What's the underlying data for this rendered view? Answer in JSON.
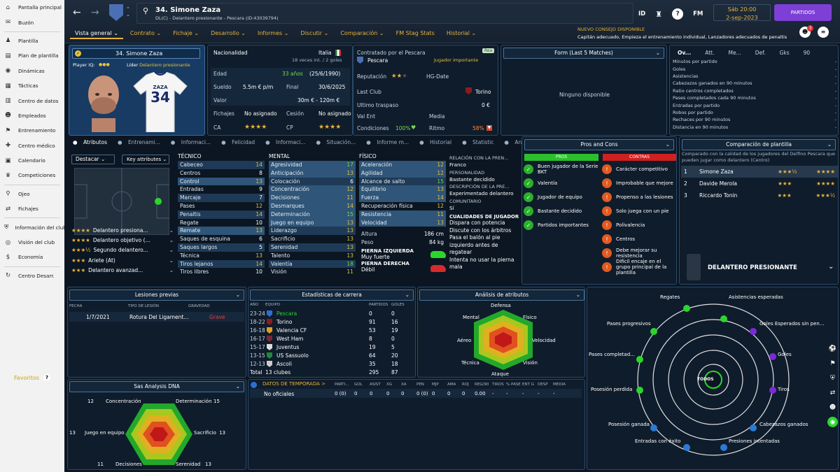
{
  "sidebar": {
    "items": [
      {
        "label": "Pantalla principal",
        "icon": "home-icon",
        "glyph": "⌂"
      },
      {
        "label": "Buzón",
        "icon": "mail-icon",
        "glyph": "✉"
      },
      {
        "label": "Plantilla",
        "icon": "squad-icon",
        "glyph": "♟"
      },
      {
        "label": "Plan de plantilla",
        "icon": "plan-icon",
        "glyph": "▤"
      },
      {
        "label": "Dinámicas",
        "icon": "dynamics-icon",
        "glyph": "◉"
      },
      {
        "label": "Tácticas",
        "icon": "tactics-icon",
        "glyph": "▦"
      },
      {
        "label": "Centro de datos",
        "icon": "data-icon",
        "glyph": "▥"
      },
      {
        "label": "Empleados",
        "icon": "staff-icon",
        "glyph": "☻"
      },
      {
        "label": "Entrenamiento",
        "icon": "training-icon",
        "glyph": "⚑"
      },
      {
        "label": "Centro médico",
        "icon": "medical-icon",
        "glyph": "✚"
      },
      {
        "label": "Calendario",
        "icon": "calendar-icon",
        "glyph": "▣"
      },
      {
        "label": "Competiciones",
        "icon": "trophy-icon",
        "glyph": "♛"
      },
      {
        "label": "Ojeo",
        "icon": "scout-icon",
        "glyph": "⚲"
      },
      {
        "label": "Fichajes",
        "icon": "transfers-icon",
        "glyph": "⇄"
      },
      {
        "label": "Información del club",
        "icon": "club-icon",
        "glyph": "⛨"
      },
      {
        "label": "Visión del club",
        "icon": "vision-icon",
        "glyph": "◎"
      },
      {
        "label": "Economía",
        "icon": "finance-icon",
        "glyph": "$"
      },
      {
        "label": "Centro Desarr.",
        "icon": "development-icon",
        "glyph": "↻"
      }
    ],
    "favorites": "Favoritos"
  },
  "header": {
    "player_name": "34. Simone Zaza",
    "player_sub": "DL(C) - Delantero presionante - Pescara (ID:43039794)",
    "date_line1": "Sáb 20:00",
    "date_line2": "2-sep-2023",
    "continue_label": "PARTIDOS",
    "news_title": "NUEVO CONSEJO DISPONIBLE",
    "news_text": "Capitán adecuado, Empieza el entrenamiento individual, Lanzadores adecuados de penaltis",
    "icons": [
      "ID",
      "♜",
      "?",
      "FM"
    ],
    "badge_count": "3",
    "tabs": [
      {
        "label": "Vista general ⌄"
      },
      {
        "label": "Contrato ⌄"
      },
      {
        "label": "Fichaje ⌄"
      },
      {
        "label": "Desarrollo ⌄"
      },
      {
        "label": "Informes ⌄"
      },
      {
        "label": "Discutir ⌄"
      },
      {
        "label": "Comparación ⌄"
      },
      {
        "label": "FM Stag Stats"
      },
      {
        "label": "Historial ⌄"
      }
    ]
  },
  "profile": {
    "name": "34. Simone Zaza",
    "player_iq": "Player IQ:",
    "role_label": "Líder",
    "role": "Delantero presionante",
    "shirt_name": "ZAZA",
    "shirt_number": "34"
  },
  "info": {
    "nationality_label": "Nacionalidad",
    "nationality": "Italia",
    "caps": "18 veces int. / 2 goles",
    "rows": [
      {
        "k": "Edad",
        "v": "33 años",
        "x": "(25/6/1990)"
      },
      {
        "k": "Sueldo",
        "v": "5.5m € p/m",
        "x2k": "Final",
        "x": "30/6/2025"
      },
      {
        "k": "Valor",
        "v": "30m € - 120m €",
        "x": ""
      }
    ],
    "fichajes_label": "Fichajes",
    "fichajes": "No asignado",
    "cesion_label": "Cesión",
    "cesion": "No asignado",
    "ca": "CA",
    "cp": "CP"
  },
  "contract": {
    "label": "Contratado por el Pescara",
    "club": "Pescara",
    "status": "Jugador importante",
    "rep_label": "Reputación",
    "hg_label": "HG-Date",
    "last_club_label": "Last Club",
    "last_club": "Torino",
    "last_transfer_label": "Ultimo traspaso",
    "last_transfer": "0 €",
    "valent_label": "Val Ent",
    "media_label": "Media",
    "cond_label": "Condiciones",
    "cond": "100%",
    "ritmo_label": "Ritmo",
    "ritmo": "58%",
    "rea": "Rea"
  },
  "form": {
    "title": "Form (Last 5 Matches)",
    "empty": "Ninguno disponible"
  },
  "stats_tabs": [
    "Ov...",
    "Att.",
    "Me...",
    "Def.",
    "Gks",
    "90"
  ],
  "stats_list": [
    "Minutos por partido",
    "Goles",
    "Asistencias",
    "Cabezazos ganados en 90 minutos",
    "Ratio centros completados",
    "Pases completados cada 90 minutos",
    "Entradas por partido",
    "Robos por partido",
    "Rechaces por 90 minutos",
    "Distancia en 90 minutos"
  ],
  "subtabs": [
    "Atributos",
    "Entrenami...",
    "Informaci...",
    "Felicidad",
    "Informaci...",
    "Situación...",
    "Informe m...",
    "Historial",
    "Statistic",
    "Análisis"
  ],
  "pitch": {
    "btn1": "Destacar",
    "btn2": "Key attributes"
  },
  "roles": [
    {
      "label": "Delantero presiona...",
      "stars": "★★★★"
    },
    {
      "label": "Delantero objetivo (...",
      "stars": "★★★★"
    },
    {
      "label": "Segundo delantero...",
      "stars": "★★★½"
    },
    {
      "label": "Ariete (At)",
      "stars": "★★★"
    },
    {
      "label": "Delantero avanzad...",
      "stars": "★★★"
    }
  ],
  "technical": {
    "title": "TÉCNICO",
    "items": [
      {
        "n": "Cabeceo",
        "v": "14"
      },
      {
        "n": "Centros",
        "v": "8"
      },
      {
        "n": "Control",
        "v": "13"
      },
      {
        "n": "Entradas",
        "v": "9"
      },
      {
        "n": "Marcaje",
        "v": "7"
      },
      {
        "n": "Pases",
        "v": "12"
      },
      {
        "n": "Penaltis",
        "v": "14"
      },
      {
        "n": "Regate",
        "v": "10"
      },
      {
        "n": "Remate",
        "v": "13"
      },
      {
        "n": "Saques de esquina",
        "v": "6"
      },
      {
        "n": "Saques largos",
        "v": "5"
      },
      {
        "n": "Técnica",
        "v": "13"
      },
      {
        "n": "Tiros lejanos",
        "v": "14"
      },
      {
        "n": "Tiros libres",
        "v": "10"
      }
    ]
  },
  "mental": {
    "title": "MENTAL",
    "items": [
      {
        "n": "Agresividad",
        "v": "17"
      },
      {
        "n": "Anticipación",
        "v": "13"
      },
      {
        "n": "Colocación",
        "v": "6"
      },
      {
        "n": "Concentración",
        "v": "12"
      },
      {
        "n": "Decisiones",
        "v": "11"
      },
      {
        "n": "Desmarques",
        "v": "14"
      },
      {
        "n": "Determinación",
        "v": "15"
      },
      {
        "n": "Juego en equipo",
        "v": "13"
      },
      {
        "n": "Liderazgo",
        "v": "13"
      },
      {
        "n": "Sacrificio",
        "v": "13"
      },
      {
        "n": "Serenidad",
        "v": "13"
      },
      {
        "n": "Talento",
        "v": "13"
      },
      {
        "n": "Valentía",
        "v": "18"
      },
      {
        "n": "Visión",
        "v": "11"
      }
    ]
  },
  "physical": {
    "title": "FÍSICO",
    "items": [
      {
        "n": "Aceleración",
        "v": "12"
      },
      {
        "n": "Agilidad",
        "v": "12"
      },
      {
        "n": "Alcance de salto",
        "v": "15"
      },
      {
        "n": "Equilibrio",
        "v": "13"
      },
      {
        "n": "Fuerza",
        "v": "14"
      },
      {
        "n": "Recuperación física",
        "v": "12"
      },
      {
        "n": "Resistencia",
        "v": "11"
      },
      {
        "n": "Velocidad",
        "v": "13"
      }
    ],
    "height_label": "Altura",
    "height": "186 cm",
    "weight_label": "Peso",
    "weight": "84 kg",
    "left_foot_label": "PIERNA IZQUIERDA",
    "left_foot": "Muy fuerte",
    "right_foot_label": "PIERNA DERECHA",
    "right_foot": "Débil"
  },
  "relation": [
    "RELACIÓN CON LA PREN...",
    "Franco",
    "PERSONALIDAD",
    "Bastante decidido",
    "DESCRIPCIÓN DE LA PRE...",
    "Experimentado delantero",
    "COMUNITARIO",
    "Sí"
  ],
  "qualities": {
    "title": "CUALIDADES DE JUGADOR",
    "items": [
      "Dispara con potencia",
      "Discute con los árbitros",
      "Pasa el balón al pie izquierdo antes de regatear",
      "Intenta no usar la pierna mala"
    ]
  },
  "pros_cons": {
    "title": "Pros and Cons",
    "pros_label": "PROS",
    "cons_label": "CONTRAS",
    "pros": [
      {
        "t": "Buen jugador de la Serie BKT",
        "icon": "star-icon"
      },
      {
        "t": "Valentía",
        "icon": "shield-icon"
      },
      {
        "t": "Jugador de equipo",
        "icon": "handshake-icon"
      },
      {
        "t": "Bastante decidido",
        "icon": "fist-icon"
      },
      {
        "t": "Partidos importantes",
        "icon": "target-icon"
      }
    ],
    "cons": [
      {
        "t": "Carácter competitivo",
        "icon": "competitive-icon"
      },
      {
        "t": "Improbable que mejore",
        "icon": "trend-icon"
      },
      {
        "t": "Propenso a las lesiones",
        "icon": "injury-icon"
      },
      {
        "t": "Solo juega con un pie",
        "icon": "foot-icon"
      },
      {
        "t": "Polivalencia",
        "icon": "versatility-icon"
      },
      {
        "t": "Centros",
        "icon": "cross-icon"
      },
      {
        "t": "Debe mejorar su resistencia",
        "icon": "stamina-icon"
      },
      {
        "t": "Difícil encaje en el grupo principal de la plantilla",
        "icon": "group-icon"
      }
    ]
  },
  "squad_compare": {
    "title": "Comparación de plantilla",
    "desc": "Comparado con la calidad de los jugadores del Delfino Pescara que pueden jugar como delantero (Centro)",
    "players": [
      {
        "rank": "1",
        "name": "Simone Zaza",
        "ca": "★★★½",
        "cp": "★★★★"
      },
      {
        "rank": "2",
        "name": "Davide Merola",
        "ca": "★★★",
        "cp": "★★★★"
      },
      {
        "rank": "3",
        "name": "Riccardo Tonin",
        "ca": "★★★",
        "cp": "★★★½"
      }
    ],
    "role": "DELANTERO PRESIONANTE"
  },
  "injuries": {
    "title": "Lesiones previas",
    "cols": [
      "FECHA",
      "TIPO DE LESIÓN",
      "GRAVEDAD"
    ],
    "rows": [
      {
        "date": "1/7/2021",
        "type": "Rotura Del Ligament...",
        "sev": "Grave"
      }
    ]
  },
  "career": {
    "title": "Estadísticas de carrera",
    "cols": [
      "AÑO",
      "EQUIPO",
      "PARTIDOS",
      "GOLES"
    ],
    "rows": [
      {
        "y": "23-24",
        "t": "Pescara",
        "p": "0",
        "g": "0",
        "c": "#2b6fd6"
      },
      {
        "y": "18-22",
        "t": "Torino",
        "p": "91",
        "g": "16",
        "c": "#8a1c1c"
      },
      {
        "y": "16-18",
        "t": "Valencia CF",
        "p": "53",
        "g": "19",
        "c": "#e0a020"
      },
      {
        "y": "16-17",
        "t": "West Ham",
        "p": "8",
        "g": "0",
        "c": "#7a2638"
      },
      {
        "y": "15-17",
        "t": "Juventus",
        "p": "19",
        "g": "5",
        "c": "#dddddd"
      },
      {
        "y": "13-15",
        "t": "US Sassuolo",
        "p": "64",
        "g": "20",
        "c": "#1e8a3a"
      },
      {
        "y": "12-13",
        "t": "Ascoli",
        "p": "35",
        "g": "18",
        "c": "#cccccc"
      }
    ],
    "total_label": "Total",
    "total_clubs": "13 clubes",
    "total_p": "295",
    "total_g": "87"
  },
  "attr_analysis": {
    "title": "Análisis de atributos",
    "labels": {
      "top": "Defensa",
      "tr": "Físico",
      "r": "Velocidad",
      "br": "Visión",
      "bottom": "Ataque",
      "bl": "Técnica",
      "l": "Aéreo",
      "tl": "Mental"
    }
  },
  "dna": {
    "title": "Sas Analysis DNA",
    "labels": [
      {
        "t": "Concentración",
        "v": "12"
      },
      {
        "t": "Determinación",
        "v": "15"
      },
      {
        "t": "Sacrificio",
        "v": "13"
      },
      {
        "t": "Serenidad",
        "v": "13"
      },
      {
        "t": "Decisiones",
        "v": "11"
      },
      {
        "t": "Juego en equipo",
        "v": "13"
      }
    ]
  },
  "season": {
    "title": "DATOS DE TEMPORADA >",
    "cols": [
      "PARTI...",
      "GOL",
      "ASIST",
      "XG",
      "XA",
      "PEN",
      "MJP",
      "AMA",
      "ROJ",
      "REG/90",
      "TIROS",
      "% PASE",
      "ENT G",
      "DESP",
      "MEDIA"
    ],
    "label": "No oficiales",
    "vals": [
      "0 (0)",
      "0",
      "0",
      "0",
      "0",
      "0 (0)",
      "0",
      "0",
      "0",
      "0.00",
      "-",
      "-",
      "-",
      "-",
      "-"
    ]
  },
  "radar": {
    "center": "TODOS",
    "labels": [
      "Regates",
      "Asistencias esperadas",
      "Goles Esperados sin pen...",
      "Goles",
      "Tiros",
      "Cabezazos ganados",
      "Presiones intentadas",
      "Entradas con éxito",
      "Posesión ganada",
      "Posesión perdida",
      "Pases completad...",
      "Pases progresivos"
    ]
  }
}
